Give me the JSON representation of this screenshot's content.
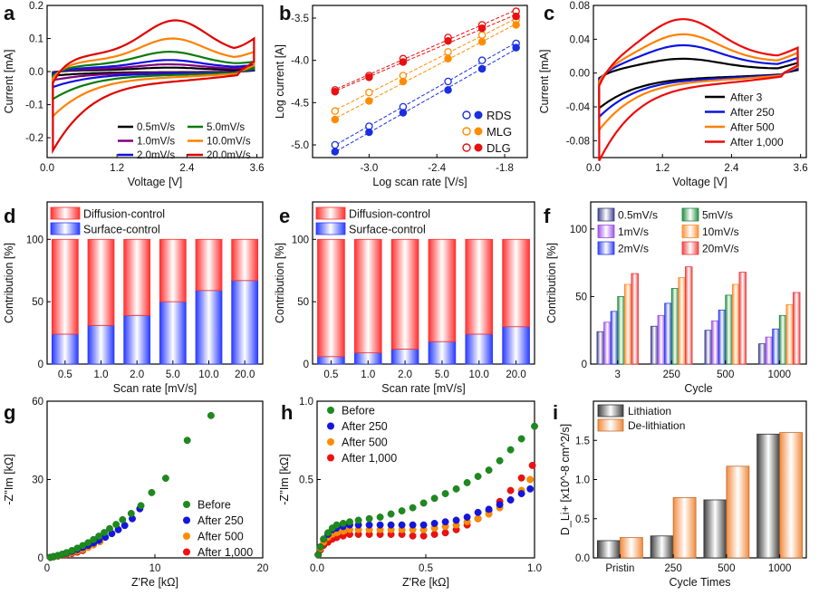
{
  "panels": [
    {
      "id": "a",
      "letter": "a"
    },
    {
      "id": "b",
      "letter": "b"
    },
    {
      "id": "c",
      "letter": "c"
    },
    {
      "id": "d",
      "letter": "d"
    },
    {
      "id": "e",
      "letter": "e"
    },
    {
      "id": "f",
      "letter": "f"
    },
    {
      "id": "g",
      "letter": "g"
    },
    {
      "id": "h",
      "letter": "h"
    },
    {
      "id": "i",
      "letter": "i"
    }
  ],
  "chart_data": [
    {
      "panel": "a",
      "type": "line",
      "xlabel": "Voltage [V]",
      "ylabel": "Current [mA]",
      "xlim": [
        0,
        3.7
      ],
      "ylim": [
        -0.26,
        0.2
      ],
      "xticks": [
        0.0,
        1.2,
        2.4,
        3.6
      ],
      "xtick_labels": [
        "0.0",
        "1.2",
        "2.4",
        "3.6"
      ],
      "yticks": [
        -0.2,
        -0.1,
        0.0,
        0.1,
        0.2
      ],
      "ytick_labels": [
        "-0.2",
        "-0.1",
        "0.0",
        "0.1",
        "0.2"
      ],
      "legend": "bottom-right, two columns",
      "series": [
        {
          "name": "0.5mV/s",
          "color": "#000000",
          "anodic_peak": [
            2.1,
            0.012
          ],
          "low_end": [
            0.1,
            -0.012
          ],
          "high_end": [
            3.5,
            0.01
          ]
        },
        {
          "name": "1.0mV/s",
          "color": "#800080",
          "anodic_peak": [
            2.1,
            0.022
          ],
          "low_end": [
            0.1,
            -0.025
          ],
          "high_end": [
            3.5,
            0.015
          ]
        },
        {
          "name": "2.0mV/s",
          "color": "#1010e0",
          "anodic_peak": [
            2.1,
            0.035
          ],
          "low_end": [
            0.1,
            -0.045
          ],
          "high_end": [
            3.5,
            0.02
          ]
        },
        {
          "name": "5.0mV/s",
          "color": "#0a7a0a",
          "anodic_peak": [
            2.1,
            0.06
          ],
          "low_end": [
            0.1,
            -0.08
          ],
          "high_end": [
            3.5,
            0.03
          ]
        },
        {
          "name": "10.0mV/s",
          "color": "#ff8000",
          "anodic_peak": [
            2.15,
            0.1
          ],
          "low_end": [
            0.1,
            -0.13
          ],
          "high_end": [
            3.5,
            0.06
          ]
        },
        {
          "name": "20.0mV/s",
          "color": "#e00000",
          "anodic_peak": [
            2.2,
            0.155
          ],
          "low_end": [
            0.1,
            -0.23
          ],
          "high_end": [
            3.5,
            0.1
          ]
        }
      ]
    },
    {
      "panel": "b",
      "type": "scatter",
      "xlabel": "Log scan rate [V/s]",
      "ylabel": "Log current [A]",
      "xlim": [
        -3.5,
        -1.6
      ],
      "ylim": [
        -5.15,
        -3.35
      ],
      "xticks": [
        -3.0,
        -2.4,
        -1.8
      ],
      "xtick_labels": [
        "-3.0",
        "-2.4",
        "-1.8"
      ],
      "yticks": [
        -5.0,
        -4.5,
        -4.0,
        -3.5
      ],
      "ytick_labels": [
        "-5.0",
        "-4.5",
        "-4.0",
        "-3.5"
      ],
      "x": [
        -3.301,
        -3.0,
        -2.699,
        -2.301,
        -2.0,
        -1.699
      ],
      "legend": "bottom-right",
      "series": [
        {
          "name": "RDS",
          "color": "#1a2fe0",
          "open": [
            -5.0,
            -4.78,
            -4.55,
            -4.25,
            -4.0,
            -3.8
          ],
          "filled": [
            -5.08,
            -4.85,
            -4.62,
            -4.35,
            -4.1,
            -3.85
          ]
        },
        {
          "name": "MLG",
          "color": "#ff8c00",
          "open": [
            -4.6,
            -4.38,
            -4.18,
            -3.9,
            -3.7,
            -3.52
          ],
          "filled": [
            -4.7,
            -4.48,
            -4.25,
            -3.98,
            -3.78,
            -3.58
          ]
        },
        {
          "name": "DLG",
          "color": "#e81010",
          "open": [
            -4.35,
            -4.18,
            -3.98,
            -3.73,
            -3.58,
            -3.42
          ],
          "filled": [
            -4.37,
            -4.2,
            -4.02,
            -3.77,
            -3.62,
            -3.48
          ]
        }
      ]
    },
    {
      "panel": "c",
      "type": "line",
      "xlabel": "Voltage [V]",
      "ylabel": "Current [mA]",
      "xlim": [
        0,
        3.7
      ],
      "ylim": [
        -0.1,
        0.08
      ],
      "xticks": [
        0.0,
        1.2,
        2.4,
        3.6
      ],
      "xtick_labels": [
        "0.0",
        "1.2",
        "2.4",
        "3.6"
      ],
      "yticks": [
        -0.08,
        -0.04,
        0.0,
        0.04,
        0.08
      ],
      "ytick_labels": [
        "-0.08",
        "-0.04",
        "0.00",
        "0.04",
        "0.08"
      ],
      "legend": "bottom-right",
      "series": [
        {
          "name": "After 3",
          "color": "#000000",
          "anodic_peak": [
            1.55,
            0.017
          ],
          "low_end": [
            0.1,
            -0.04
          ]
        },
        {
          "name": "After 250",
          "color": "#0a14e0",
          "anodic_peak": [
            1.55,
            0.033
          ],
          "low_end": [
            0.1,
            -0.05
          ]
        },
        {
          "name": "After 500",
          "color": "#ff8000",
          "anodic_peak": [
            1.55,
            0.046
          ],
          "low_end": [
            0.1,
            -0.065
          ]
        },
        {
          "name": "After 1,000",
          "color": "#ee0a0a",
          "anodic_peak": [
            1.55,
            0.064
          ],
          "low_end": [
            0.1,
            -0.1
          ]
        }
      ]
    },
    {
      "panel": "d",
      "type": "bar",
      "xlabel": "Scan rate [mV/s]",
      "ylabel": "Contribution [%]",
      "ylim": [
        0,
        130
      ],
      "yticks": [
        0,
        50,
        100
      ],
      "ytick_labels": [
        "0",
        "50",
        "100"
      ],
      "categories": [
        "0.5",
        "1.0",
        "2.0",
        "5.0",
        "10.0",
        "20.0"
      ],
      "legend": "top-left",
      "series": [
        {
          "name": "Surface-control",
          "values": [
            24,
            31,
            39,
            50,
            59,
            67
          ]
        },
        {
          "name": "Diffusion-control",
          "values": [
            76,
            69,
            61,
            50,
            41,
            33
          ]
        }
      ]
    },
    {
      "panel": "e",
      "type": "bar",
      "xlabel": "Scan rate [mV/s]",
      "ylabel": "Contribution [%]",
      "ylim": [
        0,
        130
      ],
      "yticks": [
        0,
        50,
        100
      ],
      "ytick_labels": [
        "0",
        "50",
        "100"
      ],
      "categories": [
        "0.5",
        "1.0",
        "2.0",
        "5.0",
        "10.0",
        "20.0"
      ],
      "legend": "top-left",
      "series": [
        {
          "name": "Surface-control",
          "values": [
            6,
            9,
            12,
            18,
            24,
            30
          ]
        },
        {
          "name": "Diffusion-control",
          "values": [
            94,
            91,
            88,
            82,
            76,
            70
          ]
        }
      ]
    },
    {
      "panel": "f",
      "type": "bar",
      "xlabel": "Cycle",
      "ylabel": "Contribution [%]",
      "ylim": [
        0,
        120
      ],
      "yticks": [
        0,
        50,
        100
      ],
      "ytick_labels": [
        "0",
        "50",
        "100"
      ],
      "categories": [
        "3",
        "250",
        "500",
        "1000"
      ],
      "legend": "top, three columns",
      "series": [
        {
          "name": "0.5mV/s",
          "color": "#3a3a8a",
          "values": [
            24,
            28,
            25,
            15
          ]
        },
        {
          "name": "1mV/s",
          "color": "#9a4ae8",
          "values": [
            31,
            36,
            32,
            20
          ]
        },
        {
          "name": "2mV/s",
          "color": "#2a3aee",
          "values": [
            39,
            45,
            40,
            26
          ]
        },
        {
          "name": "5mV/s",
          "color": "#1a8a3a",
          "values": [
            50,
            56,
            51,
            36
          ]
        },
        {
          "name": "10mV/s",
          "color": "#ff8a2a",
          "values": [
            59,
            64,
            59,
            44
          ]
        },
        {
          "name": "20mV/s",
          "color": "#ee3a3a",
          "values": [
            67,
            72,
            68,
            53
          ]
        }
      ]
    },
    {
      "panel": "g",
      "type": "scatter",
      "xlabel": "Z'Re [kΩ]",
      "ylabel": "-Z''Im [kΩ]",
      "xlim": [
        0,
        20
      ],
      "ylim": [
        0,
        60
      ],
      "xticks": [
        0,
        10,
        20
      ],
      "xtick_labels": [
        "0",
        "10",
        "20"
      ],
      "yticks": [
        0,
        30,
        60
      ],
      "ytick_labels": [
        "0",
        "30",
        "60"
      ],
      "legend": "bottom-right",
      "series": [
        {
          "name": "Before",
          "color": "#1e8a1e",
          "x": [
            0.3,
            0.6,
            1.0,
            1.4,
            1.8,
            2.3,
            2.8,
            3.3,
            3.8,
            4.3,
            4.8,
            5.3,
            5.8,
            6.4,
            7.0,
            7.8,
            8.7,
            9.7,
            11.0,
            13.0,
            15.2
          ],
          "y": [
            0.2,
            0.5,
            0.9,
            1.4,
            2.0,
            2.8,
            3.7,
            4.7,
            5.8,
            7.0,
            8.3,
            9.7,
            11.2,
            12.8,
            14.6,
            17.0,
            20.0,
            25.0,
            30.5,
            45.0,
            54.5
          ]
        },
        {
          "name": "After 250",
          "color": "#1515e0",
          "x": [
            0.3,
            0.6,
            1.0,
            1.4,
            1.8,
            2.3,
            2.8,
            3.3,
            3.8,
            4.3,
            4.8,
            5.4,
            6.0,
            6.6,
            7.2,
            7.9,
            8.6
          ],
          "y": [
            0.2,
            0.5,
            0.9,
            1.3,
            1.8,
            2.5,
            3.2,
            4.0,
            4.8,
            5.7,
            6.7,
            7.9,
            9.3,
            10.8,
            12.4,
            15.0,
            18.8
          ]
        },
        {
          "name": "After 500",
          "color": "#ff8c00",
          "x": [
            0.3,
            0.6,
            1.0,
            1.4,
            1.8,
            2.3,
            2.8,
            3.3,
            3.8,
            4.3,
            4.9
          ],
          "y": [
            0.2,
            0.4,
            0.8,
            1.1,
            1.5,
            2.0,
            2.6,
            3.2,
            4.0,
            5.0,
            6.2
          ]
        },
        {
          "name": "After 1,000",
          "color": "#ee1111",
          "x": [
            0.3,
            0.6,
            1.0,
            1.4,
            1.8,
            2.3,
            2.8,
            3.3
          ],
          "y": [
            0.2,
            0.4,
            0.7,
            1.0,
            1.3,
            1.7,
            2.2,
            2.8
          ]
        }
      ]
    },
    {
      "panel": "h",
      "type": "scatter",
      "xlabel": "Z'Re [kΩ]",
      "ylabel": "-Z''Im [kΩ]",
      "xlim": [
        0,
        1.0
      ],
      "ylim": [
        0,
        1.0
      ],
      "xticks": [
        0.0,
        0.5,
        1.0
      ],
      "xtick_labels": [
        "0.0",
        "0.5",
        "1.0"
      ],
      "yticks": [
        0.5,
        1.0
      ],
      "ytick_labels": [
        "0.5",
        "1.0"
      ],
      "legend": "top-left",
      "series": [
        {
          "name": "Before",
          "color": "#1e8a1e",
          "x": [
            0.005,
            0.015,
            0.03,
            0.05,
            0.07,
            0.09,
            0.12,
            0.15,
            0.19,
            0.24,
            0.29,
            0.34,
            0.39,
            0.44,
            0.49,
            0.54,
            0.59,
            0.64,
            0.69,
            0.74,
            0.79,
            0.84,
            0.89,
            0.94,
            1.0
          ],
          "y": [
            0.02,
            0.07,
            0.12,
            0.16,
            0.19,
            0.21,
            0.22,
            0.23,
            0.24,
            0.25,
            0.26,
            0.28,
            0.3,
            0.32,
            0.35,
            0.38,
            0.41,
            0.44,
            0.48,
            0.52,
            0.56,
            0.62,
            0.69,
            0.76,
            0.84
          ]
        },
        {
          "name": "After 250",
          "color": "#1515e0",
          "x": [
            0.005,
            0.015,
            0.03,
            0.05,
            0.07,
            0.09,
            0.12,
            0.15,
            0.19,
            0.24,
            0.29,
            0.34,
            0.39,
            0.44,
            0.49,
            0.54,
            0.59,
            0.64,
            0.69,
            0.74,
            0.79,
            0.84,
            0.89,
            0.94,
            0.98
          ],
          "y": [
            0.02,
            0.07,
            0.12,
            0.15,
            0.18,
            0.19,
            0.2,
            0.21,
            0.21,
            0.21,
            0.21,
            0.21,
            0.21,
            0.21,
            0.21,
            0.22,
            0.23,
            0.24,
            0.26,
            0.29,
            0.31,
            0.34,
            0.37,
            0.41,
            0.44
          ]
        },
        {
          "name": "After 500",
          "color": "#ff8c00",
          "x": [
            0.005,
            0.015,
            0.03,
            0.05,
            0.07,
            0.09,
            0.12,
            0.15,
            0.19,
            0.24,
            0.29,
            0.34,
            0.39,
            0.44,
            0.49,
            0.54,
            0.59,
            0.64,
            0.69,
            0.74,
            0.79,
            0.84,
            0.89,
            0.94,
            0.98
          ],
          "y": [
            0.02,
            0.06,
            0.1,
            0.13,
            0.15,
            0.16,
            0.17,
            0.18,
            0.18,
            0.18,
            0.18,
            0.18,
            0.18,
            0.18,
            0.18,
            0.19,
            0.2,
            0.21,
            0.23,
            0.25,
            0.28,
            0.32,
            0.37,
            0.43,
            0.5
          ]
        },
        {
          "name": "After 1,000",
          "color": "#ee1111",
          "x": [
            0.005,
            0.015,
            0.03,
            0.05,
            0.07,
            0.09,
            0.12,
            0.15,
            0.19,
            0.24,
            0.29,
            0.34,
            0.39,
            0.44,
            0.49,
            0.54,
            0.59,
            0.64,
            0.69,
            0.74,
            0.79,
            0.84,
            0.89,
            0.94,
            0.99
          ],
          "y": [
            0.02,
            0.05,
            0.08,
            0.1,
            0.12,
            0.13,
            0.14,
            0.15,
            0.15,
            0.15,
            0.15,
            0.15,
            0.15,
            0.14,
            0.14,
            0.15,
            0.16,
            0.18,
            0.21,
            0.25,
            0.3,
            0.36,
            0.43,
            0.51,
            0.59
          ]
        }
      ]
    },
    {
      "panel": "i",
      "type": "bar",
      "xlabel": "Cycle Times",
      "ylabel": "D_Li+ [x10^-8 cm^2/s]",
      "ylim": [
        0,
        2.0
      ],
      "yticks": [
        0.0,
        0.5,
        1.0,
        1.5
      ],
      "ytick_labels": [
        "0.0",
        "0.5",
        "1.0",
        "1.5"
      ],
      "categories": [
        "Pristin",
        "250",
        "500",
        "1000"
      ],
      "legend": "top-left",
      "series": [
        {
          "name": "Lithiation",
          "color": "#404040",
          "values": [
            0.22,
            0.28,
            0.74,
            1.58
          ]
        },
        {
          "name": "De-lithiation",
          "color": "#f28a3c",
          "values": [
            0.26,
            0.77,
            1.17,
            1.6
          ]
        }
      ]
    }
  ]
}
